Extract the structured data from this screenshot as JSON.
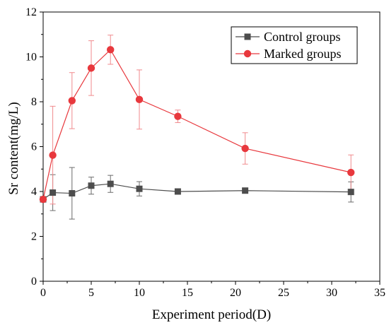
{
  "chart_data": {
    "type": "line",
    "title": "",
    "xlabel": "Experiment period(D)",
    "ylabel": "Sr content(mg/L)",
    "xlim": [
      0,
      35
    ],
    "ylim": [
      0,
      12
    ],
    "xticks": [
      0,
      5,
      10,
      15,
      20,
      25,
      30,
      35
    ],
    "yticks": [
      0,
      2,
      4,
      6,
      8,
      10,
      12
    ],
    "grid": false,
    "legend_position": "top-right",
    "series": [
      {
        "name": "Control groups",
        "color": "#4d4d4d",
        "marker": "square",
        "x": [
          0,
          1,
          3,
          5,
          7,
          10,
          14,
          21,
          32
        ],
        "y": [
          3.65,
          3.95,
          3.92,
          4.26,
          4.34,
          4.12,
          4.0,
          4.04,
          3.98
        ],
        "error": [
          0.0,
          0.8,
          1.15,
          0.38,
          0.38,
          0.32,
          0.0,
          0.0,
          0.45
        ]
      },
      {
        "name": "Marked groups",
        "color": "#e8383d",
        "marker": "circle",
        "x": [
          0,
          1,
          3,
          5,
          7,
          10,
          14,
          21,
          32
        ],
        "y": [
          3.65,
          5.62,
          8.05,
          9.5,
          10.32,
          8.1,
          7.35,
          5.92,
          4.85
        ],
        "error": [
          0.0,
          2.18,
          1.25,
          1.22,
          0.65,
          1.32,
          0.28,
          0.7,
          0.78
        ]
      }
    ]
  }
}
